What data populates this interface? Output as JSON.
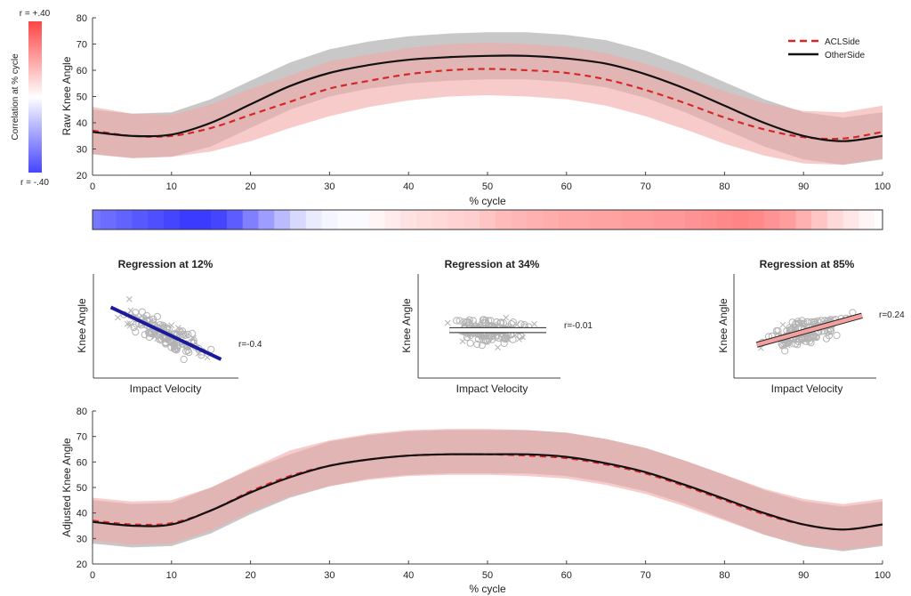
{
  "chart_data": [
    {
      "id": "top",
      "type": "line",
      "xlabel": "% cycle",
      "ylabel": "Raw Knee Angle",
      "xlim": [
        0,
        100
      ],
      "ylim": [
        20,
        80
      ],
      "xticks": [
        0,
        10,
        20,
        30,
        40,
        50,
        60,
        70,
        80,
        90,
        100
      ],
      "yticks": [
        20,
        30,
        40,
        50,
        60,
        70,
        80
      ],
      "legend_position": "top-right",
      "x": [
        0,
        5,
        10,
        15,
        20,
        25,
        30,
        35,
        40,
        45,
        50,
        55,
        60,
        65,
        70,
        75,
        80,
        85,
        90,
        95,
        100
      ],
      "series": [
        {
          "name": "ACLSide",
          "color": "#d62728",
          "style": "dashed",
          "band_color": "#f4a8a8",
          "mean": [
            37,
            35,
            35,
            38,
            43,
            48,
            53,
            56,
            58.5,
            60,
            60.5,
            60,
            59,
            56.5,
            52.5,
            47.5,
            42,
            37.5,
            34.5,
            34,
            36.5
          ],
          "lower": [
            28,
            26.5,
            27,
            29,
            33,
            38,
            42.5,
            46,
            48.5,
            50,
            50.5,
            50,
            49,
            46.5,
            42.5,
            37.5,
            32,
            27.5,
            24.5,
            24,
            26.5
          ],
          "upper": [
            46,
            43.5,
            43,
            47,
            53,
            58,
            63.5,
            66,
            68.5,
            70,
            70.5,
            70,
            69,
            66.5,
            62.5,
            57.5,
            52,
            47.5,
            44.5,
            44,
            46.5
          ]
        },
        {
          "name": "OtherSide",
          "color": "#111111",
          "style": "solid",
          "band_color": "#b5b5b5",
          "mean": [
            36.5,
            35,
            35.5,
            40,
            47,
            54,
            59,
            62,
            64,
            65,
            65.5,
            65.5,
            64.5,
            62.5,
            58.5,
            53,
            46.5,
            40,
            35,
            33,
            35
          ],
          "lower": [
            28,
            26.5,
            27,
            31,
            38,
            45,
            50,
            53,
            55,
            56,
            56.5,
            56.5,
            55.5,
            53.5,
            49.5,
            44,
            37.5,
            31,
            26,
            24,
            26
          ],
          "upper": [
            45,
            43.5,
            44,
            49,
            56,
            63,
            68,
            71,
            73,
            74,
            74.5,
            74.5,
            73.5,
            71.5,
            67.5,
            62,
            55.5,
            49,
            44,
            42,
            44
          ]
        }
      ]
    },
    {
      "id": "bottom",
      "type": "line",
      "xlabel": "% cycle",
      "ylabel": "Adjusted Knee Angle",
      "xlim": [
        0,
        100
      ],
      "ylim": [
        20,
        80
      ],
      "xticks": [
        0,
        10,
        20,
        30,
        40,
        50,
        60,
        70,
        80,
        90,
        100
      ],
      "yticks": [
        20,
        30,
        40,
        50,
        60,
        70,
        80
      ],
      "x": [
        0,
        5,
        10,
        15,
        20,
        25,
        30,
        35,
        40,
        45,
        50,
        55,
        60,
        65,
        70,
        75,
        80,
        85,
        90,
        95,
        100
      ],
      "series": [
        {
          "name": "ACLSide",
          "color": "#d62728",
          "style": "dashed",
          "band_color": "#f4a8a8",
          "mean": [
            37,
            35.5,
            36,
            41,
            48.5,
            54.5,
            58.5,
            61,
            62.5,
            63,
            63,
            62.5,
            61.5,
            59,
            55.5,
            50.5,
            45,
            39.5,
            35.5,
            33.5,
            35.5
          ],
          "lower": [
            29,
            27.5,
            28,
            33,
            40.5,
            46.5,
            50.5,
            53,
            54.5,
            55,
            55,
            54.5,
            53.5,
            51,
            47.5,
            42.5,
            37,
            31.5,
            27.5,
            25.5,
            27.5
          ],
          "upper": [
            46,
            44.5,
            45,
            50,
            57.5,
            64.5,
            68.5,
            71,
            72.5,
            73,
            73,
            72.5,
            71.5,
            69,
            65.5,
            60.5,
            55,
            49.5,
            45.5,
            43.5,
            45.5
          ]
        },
        {
          "name": "OtherSide",
          "color": "#111111",
          "style": "solid",
          "band_color": "#b5b5b5",
          "mean": [
            36.5,
            35,
            35.5,
            41,
            48,
            54,
            58.5,
            61,
            62.5,
            63,
            63,
            63,
            62,
            59.5,
            56,
            51,
            45.5,
            40,
            35.5,
            33.5,
            35.5
          ],
          "lower": [
            28,
            26.5,
            27,
            32,
            39.5,
            46,
            50.5,
            53.5,
            55,
            55.5,
            55.5,
            55.5,
            54.5,
            52,
            48.5,
            43.5,
            37.5,
            31.5,
            27,
            25,
            27
          ],
          "upper": [
            45,
            43.5,
            44,
            50,
            57,
            63,
            68,
            70.5,
            72,
            72.5,
            72.5,
            72.5,
            71.5,
            69,
            65.5,
            60.5,
            55,
            49,
            44.5,
            42.5,
            44.5
          ]
        }
      ]
    },
    {
      "id": "strip",
      "type": "heatmap",
      "description_scale": "correlation",
      "x": [
        0,
        2,
        4,
        6,
        8,
        10,
        12,
        14,
        16,
        18,
        20,
        22,
        24,
        26,
        28,
        30,
        32,
        34,
        36,
        38,
        40,
        42,
        44,
        46,
        48,
        50,
        52,
        54,
        56,
        58,
        60,
        62,
        64,
        66,
        68,
        70,
        72,
        74,
        76,
        78,
        80,
        82,
        84,
        86,
        88,
        90,
        92,
        94,
        96,
        98,
        100
      ],
      "values": [
        -0.28,
        -0.3,
        -0.32,
        -0.34,
        -0.36,
        -0.38,
        -0.4,
        -0.4,
        -0.38,
        -0.33,
        -0.26,
        -0.2,
        -0.14,
        -0.08,
        -0.04,
        -0.02,
        -0.01,
        -0.01,
        0.02,
        0.04,
        0.06,
        0.07,
        0.08,
        0.09,
        0.1,
        0.12,
        0.14,
        0.15,
        0.16,
        0.17,
        0.18,
        0.18,
        0.19,
        0.19,
        0.2,
        0.2,
        0.21,
        0.21,
        0.22,
        0.23,
        0.24,
        0.25,
        0.24,
        0.22,
        0.2,
        0.16,
        0.12,
        0.08,
        0.05,
        0.02,
        0.0
      ]
    },
    {
      "id": "colorbar",
      "type": "heatmap",
      "label": "Correlation at % cycle",
      "top_label": "r = +.40",
      "bottom_label": "r = -.40",
      "range": [
        -0.4,
        0.4
      ],
      "pos_color": "#ff3b3b",
      "neg_color": "#3b3bff"
    },
    {
      "id": "reg12",
      "type": "scatter",
      "title": "Regression at 12%",
      "xlabel": "Impact Velocity",
      "ylabel": "Knee Angle",
      "r_label": "r=-0.4",
      "fit_color": "#1a1a9c",
      "fit": [
        [
          0.12,
          0.68
        ],
        [
          0.88,
          0.18
        ]
      ]
    },
    {
      "id": "reg34",
      "type": "scatter",
      "title": "Regression at 34%",
      "xlabel": "Impact Velocity",
      "ylabel": "Knee Angle",
      "r_label": "r=-0.01",
      "fit_color": "#ffffff",
      "fit": [
        [
          0.22,
          0.46
        ],
        [
          0.9,
          0.46
        ]
      ]
    },
    {
      "id": "reg85",
      "type": "scatter",
      "title": "Regression at 85%",
      "xlabel": "Impact Velocity",
      "ylabel": "Knee Angle",
      "r_label": "r=0.24",
      "fit_color": "#f2a0a0",
      "fit": [
        [
          0.16,
          0.32
        ],
        [
          0.9,
          0.6
        ]
      ]
    }
  ]
}
